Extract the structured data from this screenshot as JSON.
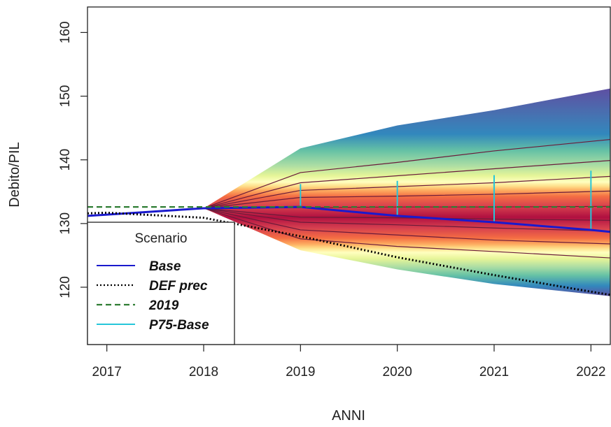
{
  "chart_data": {
    "type": "area",
    "title": "",
    "xlabel": "ANNI",
    "ylabel": "Debito/PIL",
    "xlim": [
      2016.8,
      2022.2
    ],
    "ylim": [
      111,
      164
    ],
    "x_ticks": [
      2017,
      2018,
      2019,
      2020,
      2021,
      2022
    ],
    "y_ticks": [
      120,
      130,
      140,
      150,
      160
    ],
    "grid": false,
    "legend": {
      "position": "bottom-left",
      "title": "Scenario",
      "entries": [
        {
          "label": "Base",
          "color": "#1a1acd",
          "style": "solid"
        },
        {
          "label": "DEF prec",
          "color": "#000000",
          "style": "dotted"
        },
        {
          "label": "2019",
          "color": "#2e7d32",
          "style": "dashed"
        },
        {
          "label": "P75-Base",
          "color": "#26c6da",
          "style": "solid"
        }
      ]
    },
    "fan": {
      "x": [
        2018,
        2019,
        2020,
        2021,
        2022.2
      ],
      "median": [
        132.4,
        132.5,
        132.6,
        132.6,
        132.7
      ],
      "lower_outer": [
        132.4,
        125.8,
        122.8,
        120.5,
        118.6
      ],
      "upper_outer": [
        132.4,
        141.8,
        145.4,
        147.8,
        151.2
      ],
      "contour_quantiles_upper": [
        [
          132.4,
          138.0,
          139.6,
          141.4,
          143.2
        ],
        [
          132.4,
          136.4,
          137.5,
          138.6,
          139.9
        ],
        [
          132.4,
          135.2,
          135.8,
          136.4,
          137.4
        ],
        [
          132.4,
          134.1,
          134.3,
          134.6,
          135.1
        ]
      ],
      "contour_quantiles_lower": [
        [
          132.4,
          131.0,
          130.9,
          130.7,
          130.5
        ],
        [
          132.4,
          130.2,
          129.8,
          129.3,
          128.8
        ],
        [
          132.4,
          129.0,
          128.2,
          127.4,
          126.8
        ],
        [
          132.4,
          127.6,
          126.4,
          125.6,
          124.6
        ]
      ]
    },
    "series": [
      {
        "name": "Base",
        "color": "#1a1acd",
        "style": "solid",
        "x": [
          2016.8,
          2017,
          2018,
          2019,
          2020,
          2021,
          2022,
          2022.2
        ],
        "y": [
          131.2,
          131.4,
          132.4,
          132.6,
          131.2,
          130.2,
          129.0,
          128.7
        ]
      },
      {
        "name": "DEF prec",
        "color": "#000000",
        "style": "dotted",
        "x": [
          2016.8,
          2017,
          2018,
          2019,
          2020,
          2021,
          2022,
          2022.2
        ],
        "y": [
          131.6,
          131.7,
          130.9,
          128.0,
          124.7,
          121.9,
          119.3,
          118.8
        ]
      },
      {
        "name": "2019",
        "color": "#2e7d32",
        "style": "dashed",
        "x": [
          2016.8,
          2022.2
        ],
        "y": [
          132.6,
          132.6
        ]
      }
    ],
    "p75_segments": [
      {
        "x": 2019,
        "y0": 132.6,
        "y1": 136.2
      },
      {
        "x": 2020,
        "y0": 131.2,
        "y1": 136.7
      },
      {
        "x": 2021,
        "y0": 130.2,
        "y1": 137.6
      },
      {
        "x": 2022,
        "y0": 129.0,
        "y1": 138.3
      }
    ]
  }
}
